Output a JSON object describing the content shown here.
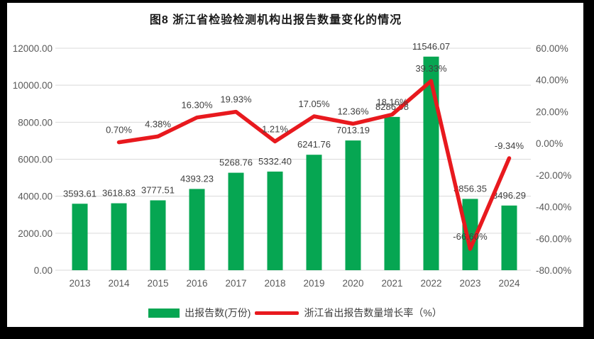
{
  "title": "图8 浙江省检验检测机构出报告数量变化的情况",
  "colors": {
    "bar": "#06A652",
    "line": "#E8191E",
    "grid": "#D9D9D9",
    "axis_text": "#595959",
    "label_text": "#404040",
    "background": "#FFFFFF",
    "frame": "#000000"
  },
  "chart_data": {
    "type": "bar",
    "subtype": "bar+line-combo",
    "title": "图8 浙江省检验检测机构出报告数量变化的情况",
    "categories": [
      "2013",
      "2014",
      "2015",
      "2016",
      "2017",
      "2018",
      "2019",
      "2020",
      "2021",
      "2022",
      "2023",
      "2024"
    ],
    "series": [
      {
        "name": "出报告数(万份)",
        "type": "bar",
        "axis": "left",
        "values": [
          3593.61,
          3618.83,
          3777.51,
          4393.23,
          5268.76,
          5332.4,
          6241.76,
          7013.19,
          8286.98,
          11546.07,
          3856.35,
          3496.29
        ]
      },
      {
        "name": "浙江省出报告数量增长率（%）",
        "type": "line",
        "axis": "right",
        "values": [
          null,
          0.7,
          4.38,
          16.3,
          19.93,
          1.21,
          17.05,
          12.36,
          18.16,
          39.33,
          -66.6,
          -9.34
        ]
      }
    ],
    "bar_labels": [
      "3593.61",
      "3618.83",
      "3777.51",
      "4393.23",
      "5268.76",
      "5332.40",
      "6241.76",
      "7013.19",
      "8286.98",
      "11546.07",
      "3856.35",
      "3496.29"
    ],
    "line_labels": [
      null,
      "0.70%",
      "4.38%",
      "16.30%",
      "19.93%",
      "1.21%",
      "17.05%",
      "12.36%",
      "18.16%",
      "39.33%",
      "-66.60%",
      "-9.34%"
    ],
    "left_axis": {
      "min": 0,
      "max": 12000,
      "step": 2000,
      "tick_labels": [
        "0.00",
        "2000.00",
        "4000.00",
        "6000.00",
        "8000.00",
        "10000.00",
        "12000.00"
      ]
    },
    "right_axis": {
      "min": -80,
      "max": 60,
      "step": 20,
      "tick_labels": [
        "-80.00%",
        "-60.00%",
        "-40.00%",
        "-20.00%",
        "0.00%",
        "20.00%",
        "40.00%",
        "60.00%"
      ]
    },
    "grid": true,
    "legend_position": "bottom"
  }
}
